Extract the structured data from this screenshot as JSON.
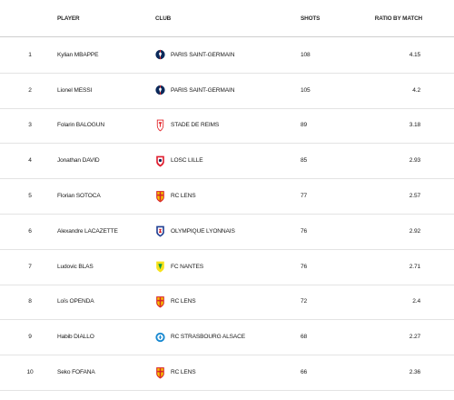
{
  "table": {
    "headers": {
      "rank": "",
      "player": "PLAYER",
      "club": "CLUB",
      "shots": "SHOTS",
      "ratio": "RATIO BY MATCH"
    },
    "rows": [
      {
        "rank": "1",
        "player": "Kylian MBAPPE",
        "club": "PARIS SAINT-GERMAIN",
        "club_logo": "psg-crest-icon",
        "shots": "108",
        "ratio": "4.15"
      },
      {
        "rank": "2",
        "player": "Lionel MESSI",
        "club": "PARIS SAINT-GERMAIN",
        "club_logo": "psg-crest-icon",
        "shots": "105",
        "ratio": "4.2"
      },
      {
        "rank": "3",
        "player": "Folarin BALOGUN",
        "club": "STADE DE REIMS",
        "club_logo": "reims-crest-icon",
        "shots": "89",
        "ratio": "3.18"
      },
      {
        "rank": "4",
        "player": "Jonathan DAVID",
        "club": "LOSC LILLE",
        "club_logo": "lille-crest-icon",
        "shots": "85",
        "ratio": "2.93"
      },
      {
        "rank": "5",
        "player": "Florian SOTOCA",
        "club": "RC LENS",
        "club_logo": "lens-crest-icon",
        "shots": "77",
        "ratio": "2.57"
      },
      {
        "rank": "6",
        "player": "Alexandre LACAZETTE",
        "club": "OLYMPIQUE LYONNAIS",
        "club_logo": "lyon-crest-icon",
        "shots": "76",
        "ratio": "2.92"
      },
      {
        "rank": "7",
        "player": "Ludovic BLAS",
        "club": "FC NANTES",
        "club_logo": "nantes-crest-icon",
        "shots": "76",
        "ratio": "2.71"
      },
      {
        "rank": "8",
        "player": "Loïs OPENDA",
        "club": "RC LENS",
        "club_logo": "lens-crest-icon",
        "shots": "72",
        "ratio": "2.4"
      },
      {
        "rank": "9",
        "player": "Habib DIALLO",
        "club": "RC STRASBOURG ALSACE",
        "club_logo": "strasbourg-crest-icon",
        "shots": "68",
        "ratio": "2.27"
      },
      {
        "rank": "10",
        "player": "Seko FOFANA",
        "club": "RC LENS",
        "club_logo": "lens-crest-icon",
        "shots": "66",
        "ratio": "2.36"
      }
    ]
  },
  "colors": {
    "psg_blue": "#0b2a5b",
    "psg_red": "#d8232a",
    "reims_red": "#e3262b",
    "lille_red": "#e01e2f",
    "lille_navy": "#1d2a5a",
    "lens_yellow": "#f5c400",
    "lens_red": "#d8232a",
    "lyon_blue": "#1f3f93",
    "lyon_red": "#da1f26",
    "nantes_yellow": "#f8e21a",
    "nantes_green": "#149646",
    "strasbourg_blue": "#1a8ad1"
  }
}
